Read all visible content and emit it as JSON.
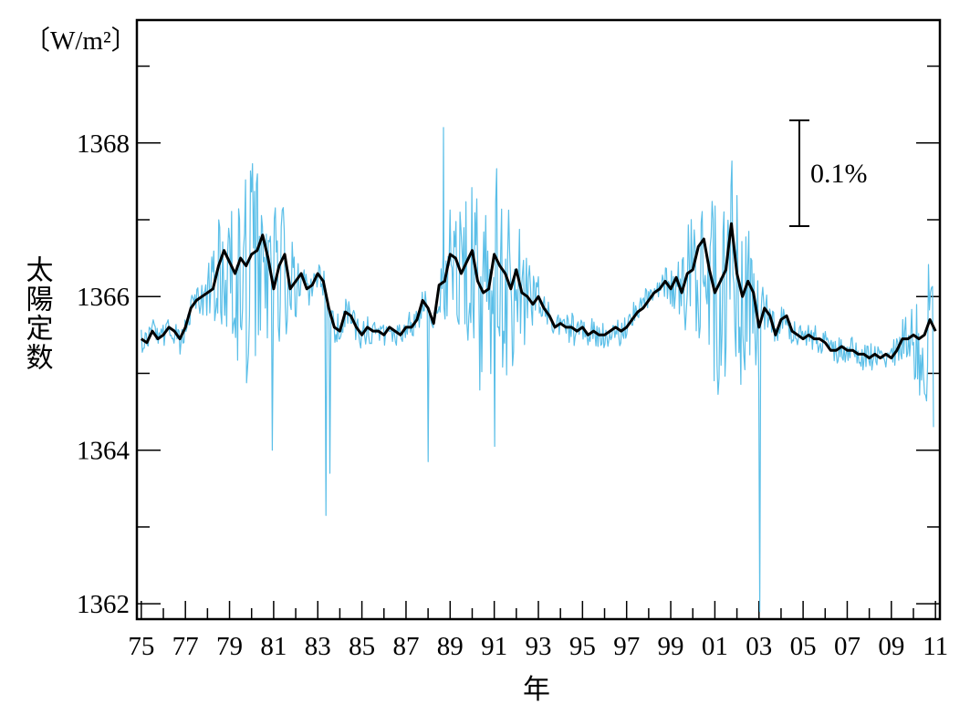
{
  "chart_data": {
    "type": "line",
    "ylabel": "太陽定数",
    "xlabel": "年",
    "unit": "〔W/m²〕",
    "annotation": "0.1%",
    "ylim": [
      1361.8,
      1369.6
    ],
    "xlim": [
      1974.8,
      2011.2
    ],
    "y_ticks": [
      1362,
      1364,
      1366,
      1368
    ],
    "x_ticks": [
      1975,
      1977,
      1979,
      1981,
      1983,
      1985,
      1987,
      1989,
      1991,
      1993,
      1995,
      1997,
      1999,
      2001,
      2003,
      2005,
      2007,
      2009,
      2011
    ],
    "x_tick_labels": [
      "75",
      "77",
      "79",
      "81",
      "83",
      "85",
      "87",
      "89",
      "91",
      "93",
      "95",
      "97",
      "99",
      "01",
      "03",
      "05",
      "07",
      "09",
      "11"
    ],
    "colors": {
      "daily": "#5bbfe8",
      "smoothed": "#000000"
    },
    "series": [
      {
        "key": "smoothed",
        "x": [
          1975.0,
          1975.25,
          1975.5,
          1975.75,
          1976.0,
          1976.25,
          1976.5,
          1976.75,
          1977.0,
          1977.25,
          1977.5,
          1977.75,
          1978.0,
          1978.25,
          1978.5,
          1978.75,
          1979.0,
          1979.25,
          1979.5,
          1979.75,
          1980.0,
          1980.25,
          1980.5,
          1980.75,
          1981.0,
          1981.25,
          1981.5,
          1981.75,
          1982.0,
          1982.25,
          1982.5,
          1982.75,
          1983.0,
          1983.25,
          1983.5,
          1983.75,
          1984.0,
          1984.25,
          1984.5,
          1984.75,
          1985.0,
          1985.25,
          1985.5,
          1985.75,
          1986.0,
          1986.25,
          1986.5,
          1986.75,
          1987.0,
          1987.25,
          1987.5,
          1987.75,
          1988.0,
          1988.25,
          1988.5,
          1988.75,
          1989.0,
          1989.25,
          1989.5,
          1989.75,
          1990.0,
          1990.25,
          1990.5,
          1990.75,
          1991.0,
          1991.25,
          1991.5,
          1991.75,
          1992.0,
          1992.25,
          1992.5,
          1992.75,
          1993.0,
          1993.25,
          1993.5,
          1993.75,
          1994.0,
          1994.25,
          1994.5,
          1994.75,
          1995.0,
          1995.25,
          1995.5,
          1995.75,
          1996.0,
          1996.25,
          1996.5,
          1996.75,
          1997.0,
          1997.25,
          1997.5,
          1997.75,
          1998.0,
          1998.25,
          1998.5,
          1998.75,
          1999.0,
          1999.25,
          1999.5,
          1999.75,
          2000.0,
          2000.25,
          2000.5,
          2000.75,
          2001.0,
          2001.25,
          2001.5,
          2001.75,
          2002.0,
          2002.25,
          2002.5,
          2002.75,
          2003.0,
          2003.25,
          2003.5,
          2003.75,
          2004.0,
          2004.25,
          2004.5,
          2004.75,
          2005.0,
          2005.25,
          2005.5,
          2005.75,
          2006.0,
          2006.25,
          2006.5,
          2006.75,
          2007.0,
          2007.25,
          2007.5,
          2007.75,
          2008.0,
          2008.25,
          2008.5,
          2008.75,
          2009.0,
          2009.25,
          2009.5,
          2009.75,
          2010.0,
          2010.25,
          2010.5,
          2010.75,
          2011.0
        ],
        "y": [
          1365.45,
          1365.4,
          1365.55,
          1365.45,
          1365.5,
          1365.6,
          1365.55,
          1365.45,
          1365.6,
          1365.85,
          1365.95,
          1366.0,
          1366.05,
          1366.1,
          1366.4,
          1366.6,
          1366.45,
          1366.3,
          1366.5,
          1366.4,
          1366.55,
          1366.6,
          1366.8,
          1366.5,
          1366.1,
          1366.4,
          1366.55,
          1366.1,
          1366.2,
          1366.3,
          1366.1,
          1366.15,
          1366.3,
          1366.2,
          1365.85,
          1365.6,
          1365.55,
          1365.8,
          1365.75,
          1365.6,
          1365.5,
          1365.6,
          1365.55,
          1365.55,
          1365.5,
          1365.6,
          1365.55,
          1365.5,
          1365.6,
          1365.6,
          1365.7,
          1365.95,
          1365.85,
          1365.65,
          1366.15,
          1366.2,
          1366.55,
          1366.5,
          1366.3,
          1366.45,
          1366.6,
          1366.2,
          1366.05,
          1366.1,
          1366.55,
          1366.4,
          1366.3,
          1366.1,
          1366.35,
          1366.05,
          1366.0,
          1365.9,
          1366.0,
          1365.85,
          1365.75,
          1365.6,
          1365.65,
          1365.6,
          1365.6,
          1365.55,
          1365.6,
          1365.5,
          1365.55,
          1365.5,
          1365.5,
          1365.55,
          1365.6,
          1365.55,
          1365.6,
          1365.7,
          1365.8,
          1365.85,
          1365.95,
          1366.05,
          1366.1,
          1366.2,
          1366.1,
          1366.25,
          1366.05,
          1366.3,
          1366.35,
          1366.65,
          1366.75,
          1366.35,
          1366.05,
          1366.2,
          1366.35,
          1366.95,
          1366.3,
          1366.0,
          1366.2,
          1366.05,
          1365.6,
          1365.85,
          1365.75,
          1365.5,
          1365.7,
          1365.75,
          1365.55,
          1365.5,
          1365.45,
          1365.5,
          1365.45,
          1365.45,
          1365.4,
          1365.3,
          1365.3,
          1365.35,
          1365.3,
          1365.3,
          1365.25,
          1365.25,
          1365.2,
          1365.25,
          1365.2,
          1365.25,
          1365.2,
          1365.3,
          1365.45,
          1365.45,
          1365.5,
          1365.45,
          1365.5,
          1365.7,
          1365.55
        ]
      }
    ]
  }
}
